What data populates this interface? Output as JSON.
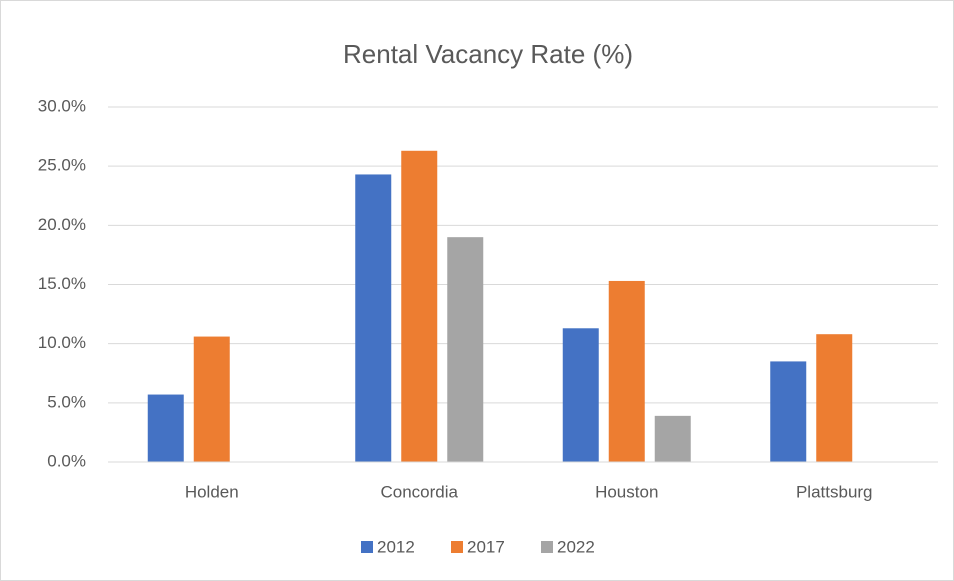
{
  "chart_data": {
    "type": "bar",
    "title": "Rental Vacancy Rate (%)",
    "categories": [
      "Holden",
      "Concordia",
      "Houston",
      "Plattsburg"
    ],
    "series": [
      {
        "name": "2012",
        "color": "#4472c4",
        "values": [
          5.7,
          24.3,
          11.3,
          8.5
        ]
      },
      {
        "name": "2017",
        "color": "#ed7d31",
        "values": [
          10.6,
          26.3,
          15.3,
          10.8
        ]
      },
      {
        "name": "2022",
        "color": "#a5a5a5",
        "values": [
          null,
          19.0,
          3.9,
          null
        ]
      }
    ],
    "ylim": [
      0,
      30
    ],
    "yticks": [
      {
        "value": 0,
        "label": "0.0%"
      },
      {
        "value": 5,
        "label": "5.0%"
      },
      {
        "value": 10,
        "label": "10.0%"
      },
      {
        "value": 15,
        "label": "15.0%"
      },
      {
        "value": 20,
        "label": "20.0%"
      },
      {
        "value": 25,
        "label": "25.0%"
      },
      {
        "value": 30,
        "label": "30.0%"
      }
    ],
    "grid": true,
    "legend": "bottom"
  }
}
